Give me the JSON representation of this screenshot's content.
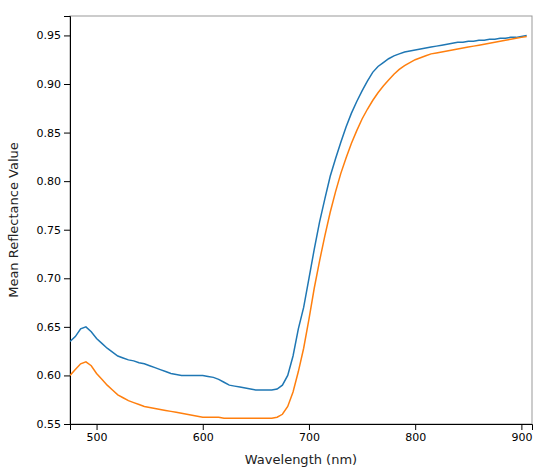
{
  "chart_data": {
    "type": "line",
    "xlabel": "Wavelength (nm)",
    "ylabel": "Mean Reflectance Value",
    "xlim": [
      475,
      910
    ],
    "ylim": [
      0.55,
      0.97
    ],
    "xticks": [
      500,
      600,
      700,
      800,
      900
    ],
    "yticks": [
      0.55,
      {
        "value": 0.6,
        "label": "0.60"
      },
      0.65,
      {
        "value": 0.7,
        "label": "0.70"
      },
      0.75,
      {
        "value": 0.8,
        "label": "0.80"
      },
      0.85,
      {
        "value": 0.9,
        "label": "0.90"
      },
      0.95
    ],
    "grid": false,
    "x": [
      475,
      480,
      485,
      490,
      495,
      500,
      505,
      510,
      515,
      520,
      525,
      530,
      535,
      540,
      545,
      550,
      555,
      560,
      565,
      570,
      575,
      580,
      585,
      590,
      595,
      600,
      605,
      610,
      615,
      620,
      625,
      630,
      635,
      640,
      645,
      650,
      655,
      660,
      665,
      670,
      675,
      680,
      685,
      690,
      695,
      700,
      705,
      710,
      715,
      720,
      725,
      730,
      735,
      740,
      745,
      750,
      755,
      760,
      765,
      770,
      775,
      780,
      785,
      790,
      795,
      800,
      805,
      810,
      815,
      820,
      825,
      830,
      835,
      840,
      845,
      850,
      855,
      860,
      865,
      870,
      875,
      880,
      885,
      890,
      895,
      900,
      905
    ],
    "series": [
      {
        "color": "#1f77b4",
        "values": [
          0.635,
          0.64,
          0.648,
          0.65,
          0.645,
          0.638,
          0.633,
          0.628,
          0.624,
          0.62,
          0.618,
          0.616,
          0.615,
          0.613,
          0.612,
          0.61,
          0.608,
          0.606,
          0.604,
          0.602,
          0.601,
          0.6,
          0.6,
          0.6,
          0.6,
          0.6,
          0.599,
          0.598,
          0.596,
          0.593,
          0.59,
          0.589,
          0.588,
          0.587,
          0.586,
          0.585,
          0.585,
          0.585,
          0.585,
          0.586,
          0.59,
          0.6,
          0.62,
          0.648,
          0.67,
          0.7,
          0.73,
          0.758,
          0.782,
          0.805,
          0.823,
          0.84,
          0.856,
          0.87,
          0.882,
          0.893,
          0.903,
          0.912,
          0.918,
          0.922,
          0.926,
          0.929,
          0.931,
          0.933,
          0.934,
          0.935,
          0.936,
          0.937,
          0.938,
          0.939,
          0.94,
          0.941,
          0.942,
          0.943,
          0.943,
          0.944,
          0.944,
          0.945,
          0.945,
          0.946,
          0.946,
          0.947,
          0.947,
          0.948,
          0.948,
          0.949,
          0.95
        ]
      },
      {
        "color": "#ff7f0e",
        "values": [
          0.6,
          0.606,
          0.612,
          0.614,
          0.61,
          0.602,
          0.596,
          0.59,
          0.585,
          0.58,
          0.577,
          0.574,
          0.572,
          0.57,
          0.568,
          0.567,
          0.566,
          0.565,
          0.564,
          0.563,
          0.562,
          0.561,
          0.56,
          0.559,
          0.558,
          0.557,
          0.557,
          0.557,
          0.557,
          0.556,
          0.556,
          0.556,
          0.556,
          0.556,
          0.556,
          0.556,
          0.556,
          0.556,
          0.556,
          0.557,
          0.56,
          0.568,
          0.583,
          0.604,
          0.628,
          0.658,
          0.69,
          0.718,
          0.744,
          0.768,
          0.789,
          0.808,
          0.824,
          0.839,
          0.852,
          0.864,
          0.874,
          0.883,
          0.891,
          0.898,
          0.904,
          0.91,
          0.915,
          0.919,
          0.922,
          0.925,
          0.927,
          0.929,
          0.931,
          0.932,
          0.933,
          0.934,
          0.935,
          0.936,
          0.937,
          0.938,
          0.939,
          0.94,
          0.941,
          0.942,
          0.943,
          0.944,
          0.945,
          0.946,
          0.947,
          0.948,
          0.949
        ]
      }
    ]
  }
}
